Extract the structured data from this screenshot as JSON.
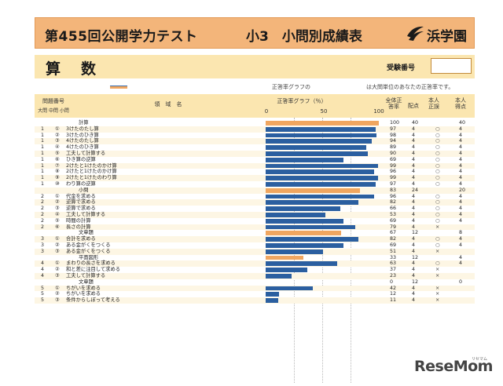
{
  "header": {
    "title": "第455回公開学力テスト",
    "subtitle": "小3　小問別成績表",
    "logo_text": "浜学園"
  },
  "subject": {
    "name": "算数",
    "exam_number_label": "受験番号"
  },
  "legend": {
    "text1": "正答率グラフの",
    "text2": "は大問単位のあなたの正答率です。"
  },
  "table_headers": {
    "q_no": "問題番号",
    "q_sub": "大問 中問 小問",
    "area": "領　域　名",
    "graph": "正答率グラフ（％）",
    "axis_0": "0",
    "axis_50": "50",
    "axis_100": "100",
    "overall": "全体正答率",
    "points": "配点",
    "correct": "本人正誤",
    "score": "本人得点"
  },
  "rows": [
    {
      "big": "",
      "sub": "",
      "name": "計算",
      "rate": 100,
      "overall": "100",
      "points": "40",
      "mark": "",
      "score": "40",
      "cat": true
    },
    {
      "big": "1",
      "sub": "①",
      "name": "3けたのたし算",
      "rate": 97,
      "overall": "97",
      "points": "4",
      "mark": "○",
      "score": "4",
      "cat": false
    },
    {
      "big": "1",
      "sub": "②",
      "name": "3けたのひき算",
      "rate": 98,
      "overall": "98",
      "points": "4",
      "mark": "○",
      "score": "4",
      "cat": false
    },
    {
      "big": "1",
      "sub": "③",
      "name": "4けたのたし算",
      "rate": 94,
      "overall": "94",
      "points": "4",
      "mark": "○",
      "score": "4",
      "cat": false
    },
    {
      "big": "1",
      "sub": "④",
      "name": "4けたのひき算",
      "rate": 89,
      "overall": "89",
      "points": "4",
      "mark": "○",
      "score": "4",
      "cat": false
    },
    {
      "big": "1",
      "sub": "⑤",
      "name": "工夫して計算する",
      "rate": 90,
      "overall": "90",
      "points": "4",
      "mark": "○",
      "score": "4",
      "cat": false
    },
    {
      "big": "1",
      "sub": "⑥",
      "name": "ひき算の逆算",
      "rate": 69,
      "overall": "69",
      "points": "4",
      "mark": "○",
      "score": "4",
      "cat": false
    },
    {
      "big": "1",
      "sub": "⑦",
      "name": "2けたと1けたのかけ算",
      "rate": 99,
      "overall": "99",
      "points": "4",
      "mark": "○",
      "score": "4",
      "cat": false
    },
    {
      "big": "1",
      "sub": "⑧",
      "name": "2けたと1けたのかけ算",
      "rate": 96,
      "overall": "96",
      "points": "4",
      "mark": "○",
      "score": "4",
      "cat": false
    },
    {
      "big": "1",
      "sub": "⑨",
      "name": "2けたと1けたのわり算",
      "rate": 99,
      "overall": "99",
      "points": "4",
      "mark": "○",
      "score": "4",
      "cat": false
    },
    {
      "big": "1",
      "sub": "⑩",
      "name": "わり算の逆算",
      "rate": 97,
      "overall": "97",
      "points": "4",
      "mark": "○",
      "score": "4",
      "cat": false
    },
    {
      "big": "",
      "sub": "",
      "name": "小問",
      "rate": 83,
      "overall": "83",
      "points": "24",
      "mark": "",
      "score": "20",
      "cat": true
    },
    {
      "big": "2",
      "sub": "①",
      "name": "代金を求める",
      "rate": 96,
      "overall": "96",
      "points": "4",
      "mark": "○",
      "score": "4",
      "cat": false
    },
    {
      "big": "2",
      "sub": "②",
      "name": "逆算で求める",
      "rate": 82,
      "overall": "82",
      "points": "4",
      "mark": "○",
      "score": "4",
      "cat": false
    },
    {
      "big": "2",
      "sub": "③",
      "name": "逆算で求める",
      "rate": 66,
      "overall": "66",
      "points": "4",
      "mark": "○",
      "score": "4",
      "cat": false
    },
    {
      "big": "2",
      "sub": "④",
      "name": "工夫して計算する",
      "rate": 53,
      "overall": "53",
      "points": "4",
      "mark": "○",
      "score": "4",
      "cat": false
    },
    {
      "big": "2",
      "sub": "⑤",
      "name": "時間の計算",
      "rate": 69,
      "overall": "69",
      "points": "4",
      "mark": "○",
      "score": "4",
      "cat": false
    },
    {
      "big": "2",
      "sub": "⑥",
      "name": "長さの計算",
      "rate": 79,
      "overall": "79",
      "points": "4",
      "mark": "×",
      "score": "",
      "cat": false
    },
    {
      "big": "",
      "sub": "",
      "name": "文章題",
      "rate": 67,
      "overall": "67",
      "points": "12",
      "mark": "",
      "score": "8",
      "cat": true
    },
    {
      "big": "3",
      "sub": "①",
      "name": "合計を求める",
      "rate": 82,
      "overall": "82",
      "points": "4",
      "mark": "○",
      "score": "4",
      "cat": false
    },
    {
      "big": "3",
      "sub": "②",
      "name": "ある金がくをつくる",
      "rate": 69,
      "overall": "69",
      "points": "4",
      "mark": "○",
      "score": "4",
      "cat": false
    },
    {
      "big": "3",
      "sub": "③",
      "name": "ある金がくをつくる",
      "rate": 51,
      "overall": "51",
      "points": "4",
      "mark": "×",
      "score": "",
      "cat": false
    },
    {
      "big": "",
      "sub": "",
      "name": "平面図形",
      "rate": 33,
      "overall": "33",
      "points": "12",
      "mark": "",
      "score": "4",
      "cat": true
    },
    {
      "big": "4",
      "sub": "①",
      "name": "まわりの長さを求める",
      "rate": 63,
      "overall": "63",
      "points": "4",
      "mark": "○",
      "score": "4",
      "cat": false
    },
    {
      "big": "4",
      "sub": "②",
      "name": "和と差に注目して求める",
      "rate": 37,
      "overall": "37",
      "points": "4",
      "mark": "×",
      "score": "",
      "cat": false
    },
    {
      "big": "4",
      "sub": "③",
      "name": "工夫して計算する",
      "rate": 23,
      "overall": "23",
      "points": "4",
      "mark": "×",
      "score": "",
      "cat": false
    },
    {
      "big": "",
      "sub": "",
      "name": "文章題",
      "rate": 0,
      "overall": "0",
      "points": "12",
      "mark": "",
      "score": "0",
      "cat": true
    },
    {
      "big": "5",
      "sub": "①",
      "name": "ちがいを求める",
      "rate": 42,
      "overall": "42",
      "points": "4",
      "mark": "×",
      "score": "",
      "cat": false
    },
    {
      "big": "5",
      "sub": "②",
      "name": "ちがいを求める",
      "rate": 12,
      "overall": "12",
      "points": "4",
      "mark": "×",
      "score": "",
      "cat": false
    },
    {
      "big": "5",
      "sub": "③",
      "name": "条件からしぼって考える",
      "rate": 11,
      "overall": "11",
      "points": "4",
      "mark": "×",
      "score": "",
      "cat": false
    }
  ],
  "watermark": {
    "main": "ReseMom",
    "sub": "リセマム"
  }
}
